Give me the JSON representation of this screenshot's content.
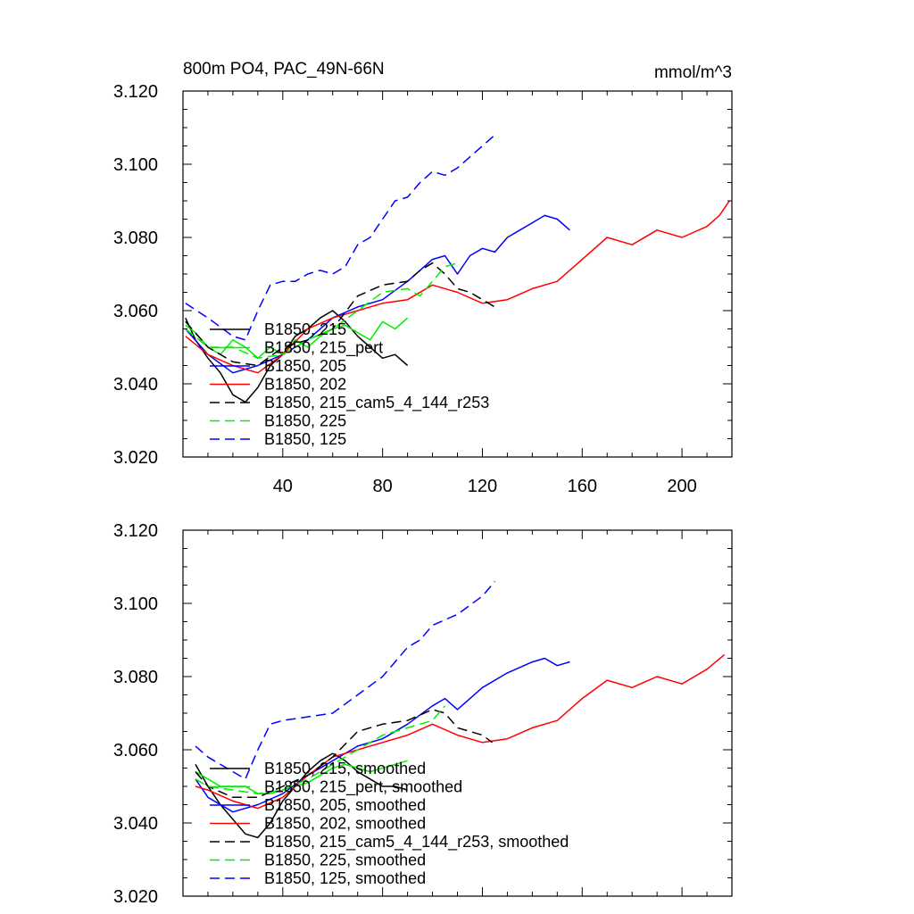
{
  "chart_data": [
    {
      "type": "line",
      "panel": "top",
      "title": "800m PO4, PAC_49N-66N",
      "units": "mmol/m^3",
      "xlabel": "",
      "ylabel": "",
      "xlim": [
        0,
        220
      ],
      "ylim": [
        3.02,
        3.12
      ],
      "xticks": [
        40,
        80,
        120,
        160,
        200
      ],
      "xtick_labels": [
        "40",
        "80",
        "120",
        "160",
        "200"
      ],
      "yticks": [
        3.02,
        3.04,
        3.06,
        3.08,
        3.1,
        3.12
      ],
      "ytick_labels": [
        "3.020",
        "3.040",
        "3.060",
        "3.080",
        "3.100",
        "3.120"
      ],
      "grid": false,
      "legend_position": "bottom-left",
      "series": [
        {
          "name": "B1850, 215",
          "color": "#000000",
          "dash": "solid",
          "x": [
            1,
            5,
            10,
            15,
            20,
            25,
            30,
            35,
            40,
            45,
            50,
            55,
            60,
            65,
            70,
            75,
            80,
            85,
            90
          ],
          "values": [
            3.058,
            3.052,
            3.047,
            3.043,
            3.037,
            3.035,
            3.039,
            3.045,
            3.048,
            3.053,
            3.055,
            3.058,
            3.06,
            3.057,
            3.053,
            3.05,
            3.047,
            3.048,
            3.045
          ]
        },
        {
          "name": "B1850, 215_pert",
          "color": "#00ee00",
          "dash": "solid",
          "x": [
            1,
            5,
            10,
            15,
            20,
            25,
            30,
            35,
            40,
            45,
            50,
            55,
            60,
            65,
            70,
            75,
            80,
            85,
            90
          ],
          "values": [
            3.056,
            3.054,
            3.05,
            3.048,
            3.052,
            3.05,
            3.047,
            3.05,
            3.048,
            3.052,
            3.05,
            3.053,
            3.055,
            3.056,
            3.054,
            3.052,
            3.057,
            3.055,
            3.058
          ]
        },
        {
          "name": "B1850, 205",
          "color": "#0000ff",
          "dash": "solid",
          "x": [
            1,
            10,
            20,
            30,
            40,
            50,
            60,
            70,
            80,
            90,
            95,
            100,
            105,
            110,
            115,
            120,
            125,
            130,
            135,
            140,
            145,
            150,
            155
          ],
          "values": [
            3.055,
            3.048,
            3.043,
            3.045,
            3.048,
            3.052,
            3.058,
            3.061,
            3.063,
            3.068,
            3.071,
            3.074,
            3.075,
            3.07,
            3.075,
            3.077,
            3.076,
            3.08,
            3.082,
            3.084,
            3.086,
            3.085,
            3.082
          ]
        },
        {
          "name": "B1850, 202",
          "color": "#ff0000",
          "dash": "solid",
          "x": [
            1,
            10,
            20,
            30,
            40,
            50,
            60,
            70,
            80,
            90,
            100,
            110,
            120,
            130,
            140,
            150,
            160,
            170,
            180,
            190,
            200,
            210,
            215,
            219
          ],
          "values": [
            3.053,
            3.048,
            3.045,
            3.043,
            3.048,
            3.055,
            3.058,
            3.06,
            3.062,
            3.063,
            3.067,
            3.065,
            3.062,
            3.063,
            3.066,
            3.068,
            3.074,
            3.08,
            3.078,
            3.082,
            3.08,
            3.083,
            3.086,
            3.09
          ]
        },
        {
          "name": "B1850, 215_cam5_4_144_r253",
          "color": "#000000",
          "dash": "dashed",
          "x": [
            1,
            10,
            20,
            30,
            40,
            50,
            60,
            70,
            80,
            90,
            95,
            100,
            105,
            110,
            115,
            120,
            125
          ],
          "values": [
            3.057,
            3.05,
            3.046,
            3.045,
            3.05,
            3.052,
            3.055,
            3.064,
            3.067,
            3.068,
            3.071,
            3.073,
            3.07,
            3.066,
            3.065,
            3.063,
            3.061
          ]
        },
        {
          "name": "B1850, 225",
          "color": "#00ee00",
          "dash": "dashed",
          "x": [
            1,
            10,
            20,
            30,
            40,
            50,
            60,
            70,
            80,
            90,
            95,
            100,
            105,
            110
          ],
          "values": [
            3.055,
            3.05,
            3.05,
            3.047,
            3.048,
            3.052,
            3.055,
            3.06,
            3.065,
            3.066,
            3.064,
            3.068,
            3.072,
            3.073
          ]
        },
        {
          "name": "B1850, 125",
          "color": "#0000ff",
          "dash": "dashed",
          "x": [
            1,
            10,
            20,
            25,
            30,
            35,
            40,
            45,
            50,
            55,
            60,
            65,
            70,
            75,
            80,
            85,
            90,
            95,
            100,
            105,
            110,
            115,
            120,
            125
          ],
          "values": [
            3.062,
            3.058,
            3.053,
            3.052,
            3.06,
            3.067,
            3.068,
            3.068,
            3.07,
            3.071,
            3.07,
            3.072,
            3.078,
            3.08,
            3.085,
            3.09,
            3.091,
            3.095,
            3.098,
            3.097,
            3.099,
            3.102,
            3.105,
            3.108
          ]
        }
      ]
    },
    {
      "type": "line",
      "panel": "bottom",
      "title": "",
      "xlabel": "",
      "ylabel": "",
      "xlim": [
        0,
        220
      ],
      "ylim": [
        3.02,
        3.12
      ],
      "xticks": [
        40,
        80,
        120,
        160,
        200
      ],
      "xtick_labels": [],
      "yticks": [
        3.02,
        3.04,
        3.06,
        3.08,
        3.1,
        3.12
      ],
      "ytick_labels": [
        "3.020",
        "3.040",
        "3.060",
        "3.080",
        "3.100",
        "3.120"
      ],
      "grid": false,
      "legend_position": "bottom-left",
      "series": [
        {
          "name": "B1850, 215, smoothed",
          "color": "#000000",
          "dash": "solid",
          "x": [
            5,
            10,
            15,
            20,
            25,
            30,
            35,
            40,
            45,
            50,
            55,
            60,
            65,
            70,
            75,
            80,
            85,
            90
          ],
          "values": [
            3.056,
            3.05,
            3.045,
            3.041,
            3.037,
            3.036,
            3.04,
            3.046,
            3.05,
            3.054,
            3.057,
            3.059,
            3.057,
            3.054,
            3.052,
            3.05,
            3.05,
            3.049
          ]
        },
        {
          "name": "B1850, 215_pert, smoothed",
          "color": "#00ee00",
          "dash": "solid",
          "x": [
            5,
            10,
            15,
            20,
            25,
            30,
            35,
            40,
            45,
            50,
            55,
            60,
            65,
            70,
            75,
            80,
            85,
            90
          ],
          "values": [
            3.054,
            3.052,
            3.05,
            3.05,
            3.05,
            3.048,
            3.048,
            3.049,
            3.05,
            3.051,
            3.053,
            3.055,
            3.056,
            3.055,
            3.054,
            3.055,
            3.056,
            3.057
          ]
        },
        {
          "name": "B1850, 205, smoothed",
          "color": "#0000ff",
          "dash": "solid",
          "x": [
            5,
            10,
            20,
            30,
            40,
            50,
            60,
            70,
            80,
            90,
            100,
            105,
            110,
            120,
            130,
            140,
            145,
            150,
            155
          ],
          "values": [
            3.052,
            3.047,
            3.043,
            3.045,
            3.048,
            3.053,
            3.057,
            3.061,
            3.063,
            3.067,
            3.072,
            3.074,
            3.071,
            3.077,
            3.081,
            3.084,
            3.085,
            3.083,
            3.084
          ]
        },
        {
          "name": "B1850, 202, smoothed",
          "color": "#ff0000",
          "dash": "solid",
          "x": [
            5,
            10,
            20,
            30,
            40,
            50,
            60,
            70,
            80,
            90,
            100,
            110,
            120,
            130,
            140,
            150,
            160,
            170,
            180,
            190,
            200,
            210,
            217
          ],
          "values": [
            3.05,
            3.049,
            3.046,
            3.044,
            3.047,
            3.053,
            3.058,
            3.06,
            3.062,
            3.064,
            3.067,
            3.064,
            3.062,
            3.063,
            3.066,
            3.068,
            3.074,
            3.079,
            3.077,
            3.08,
            3.078,
            3.082,
            3.086
          ]
        },
        {
          "name": "B1850, 215_cam5_4_144_r253, smoothed",
          "color": "#000000",
          "dash": "dashed",
          "x": [
            5,
            10,
            20,
            30,
            40,
            50,
            60,
            70,
            80,
            90,
            100,
            105,
            110,
            115,
            120,
            124
          ],
          "values": [
            3.054,
            3.05,
            3.047,
            3.047,
            3.05,
            3.053,
            3.058,
            3.065,
            3.067,
            3.068,
            3.071,
            3.07,
            3.066,
            3.065,
            3.064,
            3.062
          ]
        },
        {
          "name": "B1850, 225, smoothed",
          "color": "#00ee00",
          "dash": "dashed",
          "x": [
            5,
            10,
            20,
            30,
            40,
            50,
            60,
            70,
            80,
            90,
            100,
            105
          ],
          "values": [
            3.052,
            3.05,
            3.049,
            3.048,
            3.049,
            3.052,
            3.056,
            3.06,
            3.064,
            3.066,
            3.068,
            3.072
          ]
        },
        {
          "name": "B1850, 125, smoothed",
          "color": "#0000ff",
          "dash": "dashed",
          "x": [
            5,
            10,
            20,
            25,
            30,
            35,
            40,
            50,
            60,
            70,
            80,
            90,
            95,
            100,
            110,
            120,
            125
          ],
          "values": [
            3.061,
            3.058,
            3.054,
            3.052,
            3.06,
            3.067,
            3.068,
            3.069,
            3.07,
            3.075,
            3.08,
            3.088,
            3.09,
            3.094,
            3.097,
            3.102,
            3.106
          ]
        }
      ]
    }
  ]
}
